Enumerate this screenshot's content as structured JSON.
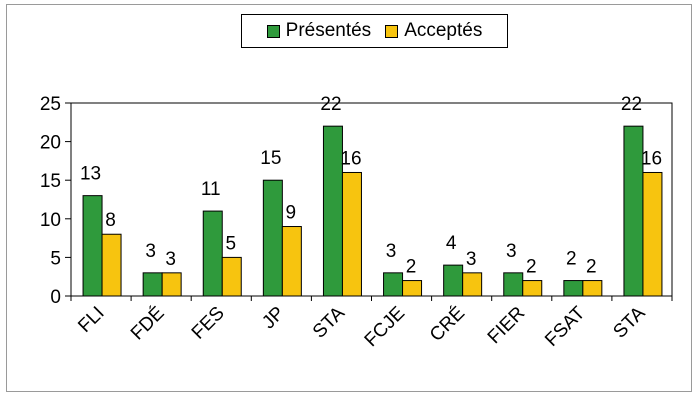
{
  "colors": {
    "presentes": "#2f9a3c",
    "acceptes": "#f7c40f",
    "axis": "#000000",
    "background": "#ffffff"
  },
  "chart_data": {
    "type": "bar",
    "categories": [
      "FLI",
      "FDÉ",
      "FES",
      "JP",
      "STA",
      "FCJE",
      "CRÉ",
      "FIER",
      "FSAT",
      "STA"
    ],
    "series": [
      {
        "name": "Présentés",
        "values": [
          13,
          3,
          11,
          15,
          22,
          3,
          4,
          3,
          2,
          22
        ],
        "labels": [
          "13",
          "3",
          "11",
          "15",
          "22",
          "3",
          "4",
          "3",
          "2",
          "22"
        ]
      },
      {
        "name": "Acceptés",
        "values": [
          8,
          3,
          5,
          9,
          16,
          2,
          3,
          2,
          2,
          16
        ],
        "labels": [
          "8",
          "3",
          "5",
          "9",
          "16",
          "2",
          "3",
          "2",
          "2",
          "16"
        ]
      }
    ],
    "yticks": [
      0,
      5,
      10,
      15,
      20,
      25
    ],
    "ylim": [
      0,
      25
    ],
    "title": "",
    "xlabel": "",
    "ylabel": "",
    "grid": false,
    "legend_position": "top-center"
  }
}
